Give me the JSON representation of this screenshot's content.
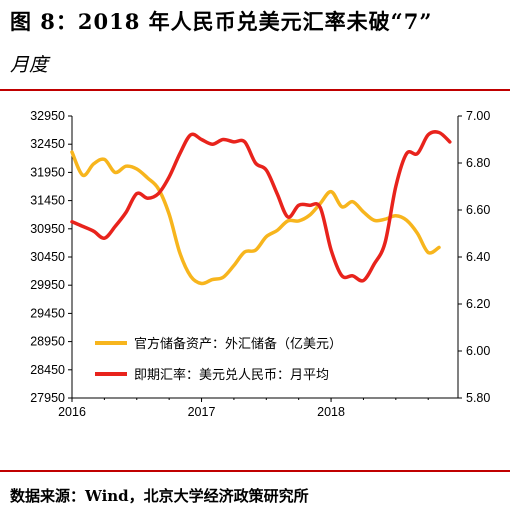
{
  "figure": {
    "title": "图 8：2018 年人民币兑美元汇率未破“7”",
    "title_line2": "月度",
    "source": "数据来源：Wind，北京大学经济政策研究所"
  },
  "chart_data": {
    "type": "line",
    "x_tick_labels": [
      "2016",
      "2017",
      "2018"
    ],
    "left_axis": {
      "ticks": [
        "27950",
        "28450",
        "28950",
        "29450",
        "29950",
        "30450",
        "30950",
        "31450",
        "31950",
        "32450",
        "32950"
      ],
      "ylim": [
        27950,
        32950
      ]
    },
    "right_axis": {
      "ticks": [
        "5.80",
        "6.00",
        "6.20",
        "6.40",
        "6.60",
        "6.80",
        "7.00"
      ],
      "ylim": [
        5.8,
        7.0
      ]
    },
    "legend_position": "bottom-left",
    "grid": false,
    "series": [
      {
        "name": "官方储备资产：外汇储备（亿美元）",
        "axis": "left",
        "color": "#f7b51d",
        "x": [
          "2016-01",
          "2016-02",
          "2016-03",
          "2016-04",
          "2016-05",
          "2016-06",
          "2016-07",
          "2016-08",
          "2016-09",
          "2016-10",
          "2016-11",
          "2016-12",
          "2017-01",
          "2017-02",
          "2017-03",
          "2017-04",
          "2017-05",
          "2017-06",
          "2017-07",
          "2017-08",
          "2017-09",
          "2017-10",
          "2017-11",
          "2017-12",
          "2018-01",
          "2018-02",
          "2018-03",
          "2018-04",
          "2018-05",
          "2018-06",
          "2018-07",
          "2018-08",
          "2018-09",
          "2018-10",
          "2018-11"
        ],
        "values": [
          32310,
          31900,
          32100,
          32180,
          31950,
          32060,
          32010,
          31850,
          31660,
          31210,
          30520,
          30110,
          29980,
          30050,
          30090,
          30300,
          30540,
          30570,
          30810,
          30920,
          31090,
          31090,
          31190,
          31400,
          31610,
          31340,
          31430,
          31250,
          31100,
          31120,
          31180,
          31100,
          30870,
          30530,
          30620
        ]
      },
      {
        "name": "即期汇率：美元兑人民币：月平均",
        "axis": "right",
        "color": "#e8231c",
        "x": [
          "2016-01",
          "2016-02",
          "2016-03",
          "2016-04",
          "2016-05",
          "2016-06",
          "2016-07",
          "2016-08",
          "2016-09",
          "2016-10",
          "2016-11",
          "2016-12",
          "2017-01",
          "2017-02",
          "2017-03",
          "2017-04",
          "2017-05",
          "2017-06",
          "2017-07",
          "2017-08",
          "2017-09",
          "2017-10",
          "2017-11",
          "2017-12",
          "2018-01",
          "2018-02",
          "2018-03",
          "2018-04",
          "2018-05",
          "2018-06",
          "2018-07",
          "2018-08",
          "2018-09",
          "2018-10",
          "2018-11",
          "2018-12"
        ],
        "values": [
          6.55,
          6.53,
          6.51,
          6.48,
          6.53,
          6.59,
          6.67,
          6.65,
          6.67,
          6.74,
          6.84,
          6.92,
          6.9,
          6.88,
          6.9,
          6.89,
          6.89,
          6.8,
          6.77,
          6.67,
          6.57,
          6.62,
          6.62,
          6.61,
          6.43,
          6.32,
          6.32,
          6.3,
          6.37,
          6.46,
          6.7,
          6.84,
          6.84,
          6.92,
          6.93,
          6.89
        ]
      }
    ]
  }
}
